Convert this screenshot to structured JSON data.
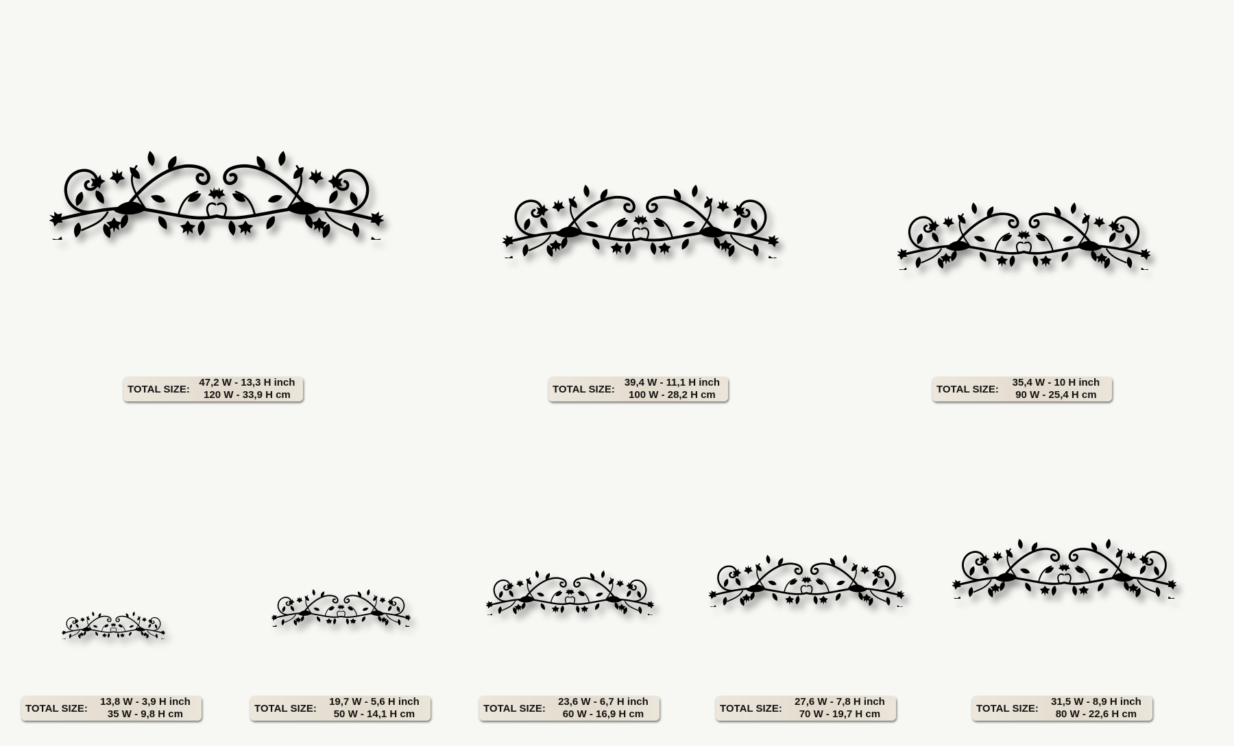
{
  "label_key": "TOTAL SIZE:",
  "items": [
    {
      "inch": "47,2 W - 13,3 H inch",
      "cm": "120 W - 33,9 H cm"
    },
    {
      "inch": "39,4 W - 11,1 H inch",
      "cm": "100 W - 28,2 H cm"
    },
    {
      "inch": "35,4 W - 10 H inch",
      "cm": "90 W - 25,4 H cm"
    },
    {
      "inch": "13,8 W - 3,9 H inch",
      "cm": "35 W - 9,8 H cm"
    },
    {
      "inch": "19,7 W - 5,6 H inch",
      "cm": "50 W - 14,1 H cm"
    },
    {
      "inch": "23,6 W - 6,7 H inch",
      "cm": "60 W - 16,9 H cm"
    },
    {
      "inch": "27,6 W - 7,8 H inch",
      "cm": "70 W - 19,7 H cm"
    },
    {
      "inch": "31,5 W - 8,9 H inch",
      "cm": "80 W - 22,6 H cm"
    }
  ],
  "colors": {
    "background": "#f7f7f3",
    "label_bg": "#e6dfd3",
    "motif": "#000000"
  },
  "motif_icon": "vine-leaf-ornament"
}
